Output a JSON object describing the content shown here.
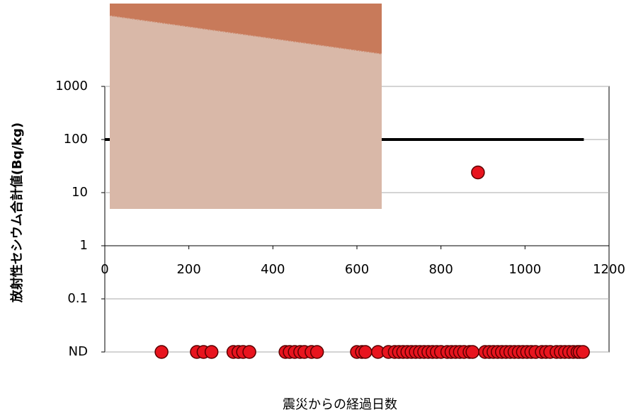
{
  "chart_data": {
    "type": "scatter",
    "y_label": "放射性セシウム合計値(Bq/kg)",
    "x_label": "震災からの経過日数",
    "xlim": [
      0,
      1200
    ],
    "xticks": [
      0,
      200,
      400,
      600,
      800,
      1000,
      1200
    ],
    "ylim": [
      0.01,
      1000
    ],
    "y_log": true,
    "yticks": [
      {
        "value": 0.01,
        "label": "ND"
      },
      0.1,
      1,
      10,
      100,
      1000
    ],
    "x_axis_at": 1,
    "grid": true,
    "series": [
      {
        "kind": "line",
        "color": "#000000",
        "x": [
          0,
          1140
        ],
        "values": [
          100,
          100
        ]
      },
      {
        "kind": "point",
        "color": "#e8141e",
        "x": [
          888
        ],
        "values": [
          24
        ]
      },
      {
        "kind": "point",
        "color": "#e8141e",
        "x": [
          135,
          219,
          235,
          254,
          306,
          318,
          329,
          344,
          430,
          440,
          452,
          465,
          475,
          492,
          505,
          600,
          612,
          620,
          650,
          675,
          690,
          700,
          710,
          720,
          730,
          740,
          750,
          760,
          770,
          780,
          790,
          800,
          815,
          825,
          835,
          845,
          855,
          868,
          875,
          905,
          915,
          925,
          935,
          945,
          955,
          965,
          975,
          985,
          995,
          1005,
          1015,
          1025,
          1040,
          1050,
          1060,
          1075,
          1085,
          1095,
          1105,
          1115,
          1125,
          1130,
          1138
        ],
        "values": [
          0.01,
          0.01,
          0.01,
          0.01,
          0.01,
          0.01,
          0.01,
          0.01,
          0.01,
          0.01,
          0.01,
          0.01,
          0.01,
          0.01,
          0.01,
          0.01,
          0.01,
          0.01,
          0.01,
          0.01,
          0.01,
          0.01,
          0.01,
          0.01,
          0.01,
          0.01,
          0.01,
          0.01,
          0.01,
          0.01,
          0.01,
          0.01,
          0.01,
          0.01,
          0.01,
          0.01,
          0.01,
          0.01,
          0.01,
          0.01,
          0.01,
          0.01,
          0.01,
          0.01,
          0.01,
          0.01,
          0.01,
          0.01,
          0.01,
          0.01,
          0.01,
          0.01,
          0.01,
          0.01,
          0.01,
          0.01,
          0.01,
          0.01,
          0.01,
          0.01,
          0.01,
          0.01,
          0.01
        ]
      }
    ]
  }
}
